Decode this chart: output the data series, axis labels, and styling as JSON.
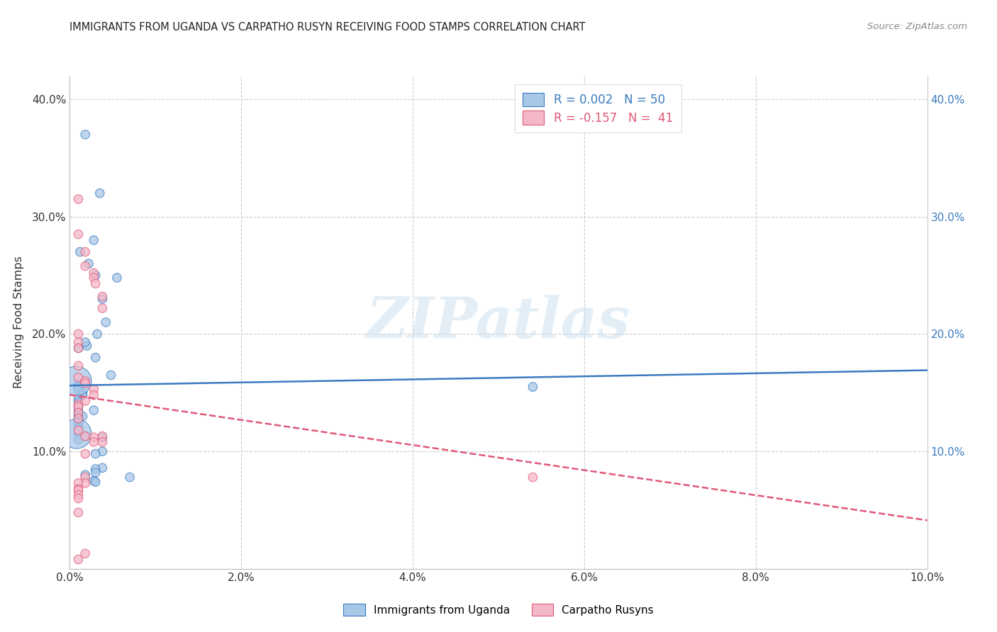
{
  "title": "IMMIGRANTS FROM UGANDA VS CARPATHO RUSYN RECEIVING FOOD STAMPS CORRELATION CHART",
  "source": "Source: ZipAtlas.com",
  "ylabel": "Receiving Food Stamps",
  "xlim": [
    0.0,
    0.1
  ],
  "ylim": [
    0.0,
    0.42
  ],
  "xtick_labels": [
    "0.0%",
    "2.0%",
    "4.0%",
    "6.0%",
    "8.0%",
    "10.0%"
  ],
  "xtick_vals": [
    0.0,
    0.02,
    0.04,
    0.06,
    0.08,
    0.1
  ],
  "ytick_labels": [
    "10.0%",
    "20.0%",
    "30.0%",
    "40.0%"
  ],
  "ytick_vals": [
    0.1,
    0.2,
    0.3,
    0.4
  ],
  "legend1_label": "R = 0.002   N = 50",
  "legend2_label": "R = -0.157   N =  41",
  "color_blue": "#a8c8e8",
  "color_pink": "#f5b8c8",
  "color_blue_line": "#3a7abf",
  "color_pink_line": "#e05878",
  "color_blue_text": "#3a7abf",
  "color_pink_text": "#e05878",
  "watermark_text": "ZIPatlas",
  "legend_bottom_label1": "Immigrants from Uganda",
  "legend_bottom_label2": "Carpatho Rusyns",
  "uganda_x": [
    0.0018,
    0.0035,
    0.0028,
    0.0012,
    0.0022,
    0.003,
    0.0055,
    0.0038,
    0.0042,
    0.0032,
    0.002,
    0.0018,
    0.001,
    0.003,
    0.0048,
    0.001,
    0.001,
    0.001,
    0.001,
    0.0015,
    0.0015,
    0.001,
    0.001,
    0.001,
    0.001,
    0.001,
    0.0028,
    0.0015,
    0.001,
    0.001,
    0.001,
    0.001,
    0.001,
    0.001,
    0.001,
    0.0018,
    0.001,
    0.0038,
    0.0038,
    0.003,
    0.054,
    0.0038,
    0.003,
    0.003,
    0.0018,
    0.007,
    0.0028,
    0.003,
    0.0008,
    0.0008
  ],
  "uganda_y": [
    0.37,
    0.32,
    0.28,
    0.27,
    0.26,
    0.25,
    0.248,
    0.23,
    0.21,
    0.2,
    0.19,
    0.193,
    0.188,
    0.18,
    0.165,
    0.158,
    0.155,
    0.154,
    0.152,
    0.15,
    0.148,
    0.145,
    0.142,
    0.138,
    0.135,
    0.132,
    0.135,
    0.13,
    0.13,
    0.128,
    0.125,
    0.122,
    0.12,
    0.118,
    0.115,
    0.113,
    0.11,
    0.112,
    0.1,
    0.098,
    0.155,
    0.086,
    0.085,
    0.082,
    0.08,
    0.078,
    0.075,
    0.074,
    0.16,
    0.115
  ],
  "uganda_sizes": [
    80,
    80,
    80,
    80,
    80,
    80,
    80,
    80,
    80,
    80,
    80,
    80,
    80,
    80,
    80,
    80,
    80,
    80,
    80,
    80,
    80,
    80,
    80,
    80,
    80,
    80,
    80,
    80,
    80,
    80,
    80,
    80,
    80,
    80,
    80,
    80,
    80,
    80,
    80,
    80,
    80,
    80,
    80,
    80,
    80,
    80,
    80,
    80,
    900,
    900
  ],
  "rusyn_x": [
    0.001,
    0.001,
    0.0018,
    0.0018,
    0.0028,
    0.0028,
    0.003,
    0.0038,
    0.0038,
    0.001,
    0.001,
    0.001,
    0.001,
    0.001,
    0.0018,
    0.0018,
    0.0028,
    0.0028,
    0.0018,
    0.001,
    0.001,
    0.001,
    0.001,
    0.001,
    0.0018,
    0.0028,
    0.0038,
    0.0028,
    0.0038,
    0.0018,
    0.054,
    0.0018,
    0.0018,
    0.001,
    0.001,
    0.001,
    0.001,
    0.001,
    0.001,
    0.0018,
    0.001
  ],
  "rusyn_y": [
    0.315,
    0.285,
    0.27,
    0.258,
    0.252,
    0.248,
    0.243,
    0.232,
    0.222,
    0.2,
    0.193,
    0.188,
    0.173,
    0.163,
    0.16,
    0.158,
    0.153,
    0.148,
    0.143,
    0.14,
    0.138,
    0.133,
    0.128,
    0.118,
    0.113,
    0.112,
    0.113,
    0.108,
    0.108,
    0.098,
    0.078,
    0.078,
    0.073,
    0.073,
    0.068,
    0.067,
    0.063,
    0.06,
    0.048,
    0.013,
    0.008
  ],
  "rusyn_sizes": [
    80,
    80,
    80,
    80,
    80,
    80,
    80,
    80,
    80,
    80,
    80,
    80,
    80,
    80,
    80,
    80,
    80,
    80,
    80,
    80,
    80,
    80,
    80,
    80,
    80,
    80,
    80,
    80,
    80,
    80,
    80,
    80,
    80,
    80,
    80,
    80,
    80,
    80,
    80,
    80,
    80
  ],
  "trend_blue_slope": 0.13,
  "trend_blue_intercept": 0.148,
  "trend_pink_slope": -1.35,
  "trend_pink_intercept": 0.148
}
